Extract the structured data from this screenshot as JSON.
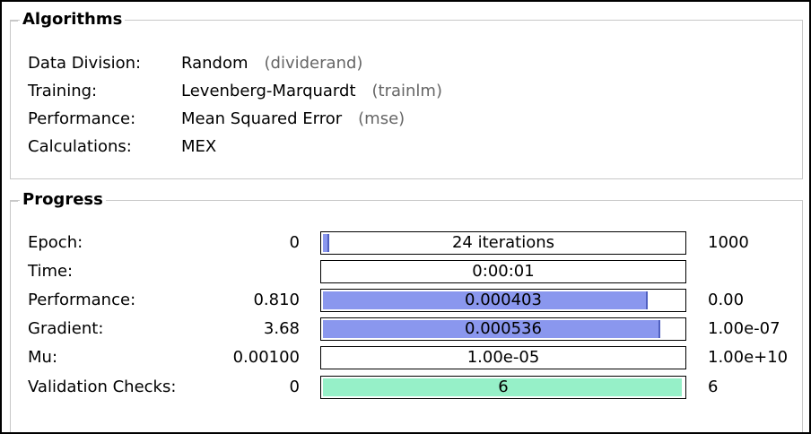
{
  "algorithms": {
    "title": "Algorithms",
    "rows": [
      {
        "label": "Data Division:",
        "value": "Random",
        "code": "(dividerand)"
      },
      {
        "label": "Training:",
        "value": "Levenberg-Marquardt",
        "code": "(trainlm)"
      },
      {
        "label": "Performance:",
        "value": "Mean Squared Error",
        "code": "(mse)"
      },
      {
        "label": "Calculations:",
        "value": "MEX"
      }
    ]
  },
  "progress": {
    "title": "Progress",
    "rows": [
      {
        "label": "Epoch:",
        "start": "0",
        "text": "24 iterations",
        "end": "1000"
      },
      {
        "label": "Time:",
        "text": "0:00:01"
      },
      {
        "label": "Performance:",
        "start": "0.810",
        "text": "0.000403",
        "end": "0.00"
      },
      {
        "label": "Gradient:",
        "start": "3.68",
        "text": "0.000536",
        "end": "1.00e-07"
      },
      {
        "label": "Mu:",
        "start": "0.00100",
        "text": "1.00e-05",
        "end": "1.00e+10"
      },
      {
        "label": "Validation Checks:",
        "start": "0",
        "text": "6",
        "end": "6"
      }
    ]
  }
}
